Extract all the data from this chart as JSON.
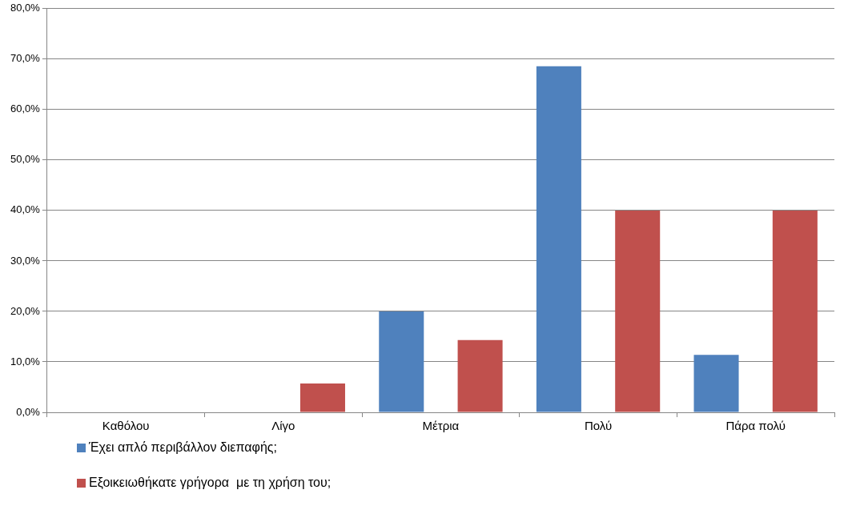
{
  "chart_data": {
    "type": "bar",
    "categories": [
      "Καθόλου",
      "Λίγο",
      "Μέτρια",
      "Πολύ",
      "Πάρα πολύ"
    ],
    "series": [
      {
        "name": "Έχει απλό περιβάλλον διεπαφής;",
        "color": "#4f81bd",
        "values": [
          0,
          0,
          20.0,
          68.6,
          11.4
        ]
      },
      {
        "name": "Εξοικειωθήκατε γρήγορα  με τη χρήση του;",
        "color": "#c0504d",
        "values": [
          0,
          5.7,
          14.3,
          40.0,
          40.0
        ]
      }
    ],
    "ylim": [
      0,
      80
    ],
    "yticks": [
      {
        "value": 0,
        "label": "0,0%"
      },
      {
        "value": 10,
        "label": "10,0%"
      },
      {
        "value": 20,
        "label": "20,0%"
      },
      {
        "value": 30,
        "label": "30,0%"
      },
      {
        "value": 40,
        "label": "40,0%"
      },
      {
        "value": 50,
        "label": "50,0%"
      },
      {
        "value": 60,
        "label": "60,0%"
      },
      {
        "value": 70,
        "label": "70,0%"
      },
      {
        "value": 80,
        "label": "80,0%"
      }
    ],
    "grid": "y",
    "legend": "bottom left"
  }
}
